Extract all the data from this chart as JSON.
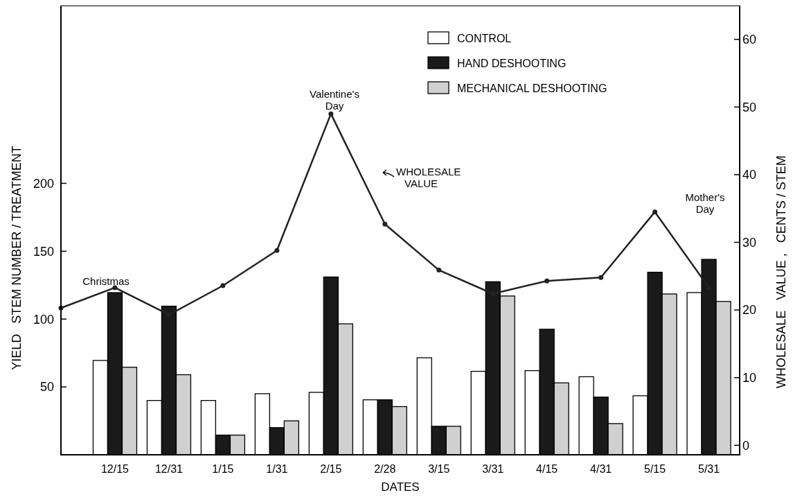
{
  "chart_data": {
    "type": "bar",
    "xlabel": "DATES",
    "ylabel": "YIELD   STEM NUMBER / TREATMENT",
    "y2label": "WHOLESALE   VALUE ,   CENTS / STEM",
    "categories": [
      null,
      "12/15",
      "12/31",
      "1/15",
      "1/31",
      "2/15",
      "2/28",
      "3/15",
      "3/31",
      "4/15",
      "4/31",
      "5/15",
      "5/31"
    ],
    "series": [
      {
        "name": "CONTROL",
        "color": "#ffffff",
        "values": [
          null,
          69.5,
          40,
          40,
          45,
          46,
          40.5,
          71.5,
          61.5,
          62,
          57.5,
          43.5,
          119.5
        ]
      },
      {
        "name": "HAND DESHOOTING",
        "color": "#1a1a1a",
        "values": [
          null,
          119.5,
          109.5,
          14.5,
          20,
          131,
          40.5,
          21,
          127.5,
          92.5,
          42.5,
          134.5,
          144
        ]
      },
      {
        "name": "MECHANICAL DESHOOTING",
        "color": "#d0d0d0",
        "values": [
          null,
          64.5,
          59,
          14.5,
          25,
          96.5,
          35.5,
          21,
          117,
          53,
          23,
          118.5,
          113
        ]
      },
      {
        "type": "line",
        "axis": "y2",
        "color": "#222222",
        "values": [
          20.3,
          23.3,
          19.3,
          23.6,
          28.8,
          49,
          32.7,
          25.9,
          22.4,
          24.3,
          24.8,
          34.5,
          23.3
        ]
      }
    ],
    "ylim": [
      0,
      331
    ],
    "yticks": [
      50,
      100,
      150,
      200
    ],
    "y2lim": [
      -1.4,
      65
    ],
    "y2ticks": [
      0,
      10,
      20,
      30,
      40,
      50,
      60
    ],
    "annotations": [
      "Christmas",
      "Valentine's Day",
      "WHOLESALE VALUE",
      "Mother's Day"
    ],
    "legend": "top right",
    "marker": "circle",
    "grid": false
  }
}
